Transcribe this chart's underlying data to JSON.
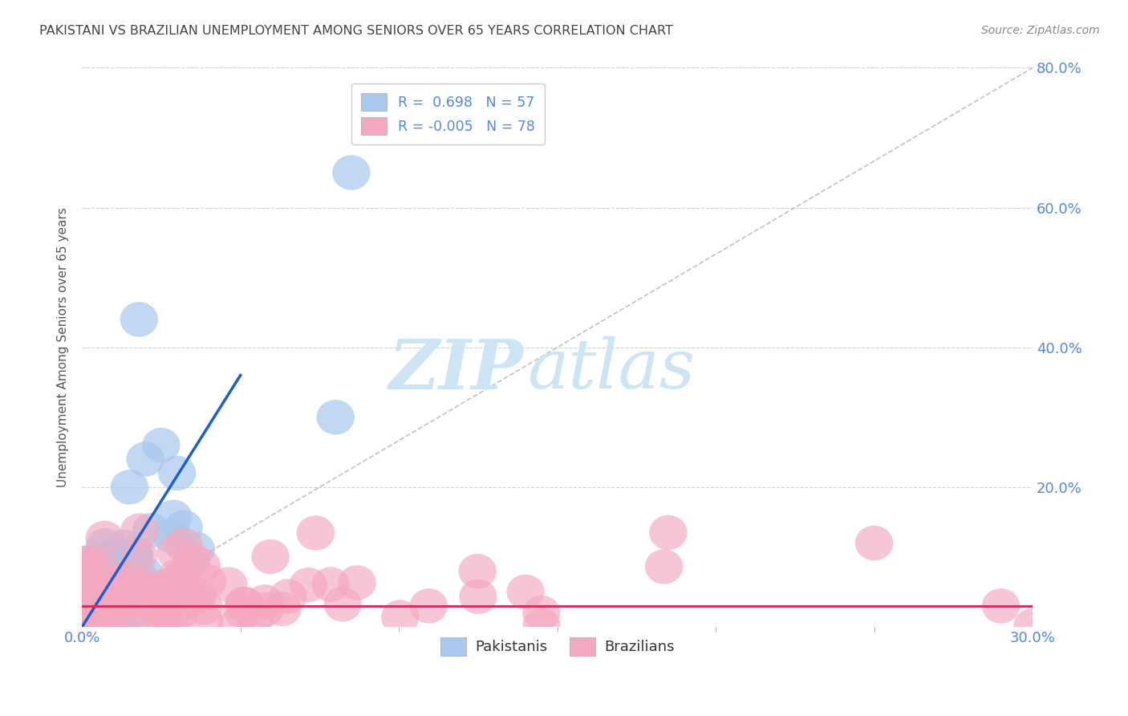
{
  "title": "PAKISTANI VS BRAZILIAN UNEMPLOYMENT AMONG SENIORS OVER 65 YEARS CORRELATION CHART",
  "source": "Source: ZipAtlas.com",
  "xlim": [
    0.0,
    30.0
  ],
  "ylim": [
    0.0,
    80.0
  ],
  "ylabel": "Unemployment Among Seniors over 65 years",
  "pakistani_color": "#a8c8ed",
  "brazilian_color": "#f4a8c0",
  "pakistani_trend_color": "#1a5fcc",
  "brazilian_trend_color": "#d63060",
  "diagonal_color": "#bbbbbb",
  "background_color": "#ffffff",
  "grid_color": "#cccccc",
  "title_color": "#444444",
  "right_axis_color": "#5588dd",
  "watermark_zip": "ZIP",
  "watermark_atlas": "atlas",
  "watermark_color": "#cce4f4",
  "ytick_vals": [
    0,
    20,
    40,
    60,
    80
  ],
  "xtick_major": [
    0,
    30
  ],
  "xtick_minor": [
    5,
    10,
    15,
    20,
    25
  ]
}
